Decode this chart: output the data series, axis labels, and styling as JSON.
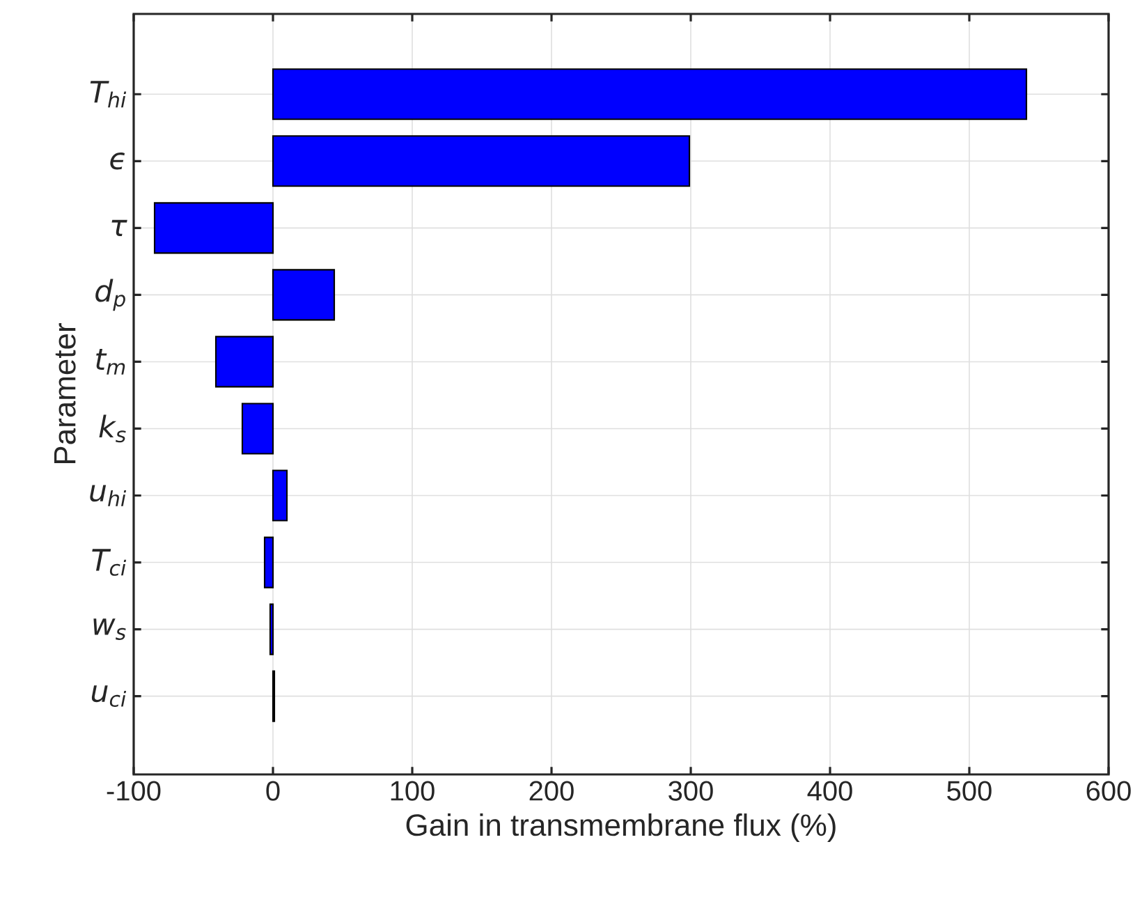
{
  "chart_data": {
    "type": "bar",
    "orientation": "horizontal",
    "xlabel": "Gain in transmembrane flux (%)",
    "ylabel": "Parameter",
    "categories": [
      "T$_{hi}$",
      "ϵ",
      "τ",
      "d$_{p}$",
      "t$_{m}$",
      "k$_{s}$",
      "u$_{hi}$",
      "T$_{ci}$",
      "w$_{s}$",
      "u$_{ci}$"
    ],
    "values": [
      541,
      299,
      -85,
      44,
      -41,
      -22,
      10,
      -6,
      -2,
      1
    ],
    "color": "#0000ff",
    "xlim": [
      -100,
      600
    ],
    "xticks": [
      -100,
      0,
      100,
      200,
      300,
      400,
      500,
      600
    ],
    "grid": true
  }
}
